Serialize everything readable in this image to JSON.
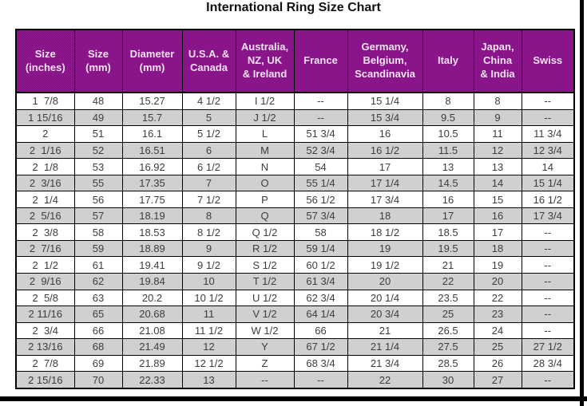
{
  "title": "International Ring Size Chart",
  "colors": {
    "header_bg": "#8a0e8a",
    "header_text": "#f6e4f4",
    "alt_row_bg": "#cdcdcd",
    "grid_border": "#000000",
    "cell_text": "#3d3d3d",
    "frame_bar": "#000000"
  },
  "chart_data": {
    "type": "table",
    "title": "International Ring Size Chart",
    "columns": [
      {
        "id": "size-inches",
        "label": "Size\n(inches)"
      },
      {
        "id": "size-mm",
        "label": "Size\n(mm)"
      },
      {
        "id": "diameter-mm",
        "label": "Diameter\n(mm)"
      },
      {
        "id": "usa-canada",
        "label": "U.S.A. &\nCanada"
      },
      {
        "id": "australia-nz-uk-ireland",
        "label": "Australia,\nNZ, UK\n& Ireland"
      },
      {
        "id": "france",
        "label": "France"
      },
      {
        "id": "germany-belgium-scandinavia",
        "label": "Germany,\nBelgium,\nScandinavia"
      },
      {
        "id": "italy",
        "label": "Italy"
      },
      {
        "id": "japan-china-india",
        "label": "Japan,\nChina\n& India"
      },
      {
        "id": "swiss",
        "label": "Swiss"
      }
    ],
    "rows": [
      [
        "1  7/8",
        "48",
        "15.27",
        "4 1/2",
        "I 1/2",
        "--",
        "15 1/4",
        "8",
        "8",
        "--"
      ],
      [
        "1 15/16",
        "49",
        "15.7",
        "5",
        "J 1/2",
        "--",
        "15 3/4",
        "9.5",
        "9",
        "--"
      ],
      [
        "2",
        "51",
        "16.1",
        "5 1/2",
        "L",
        "51 3/4",
        "16",
        "10.5",
        "11",
        "11 3/4"
      ],
      [
        "2  1/16",
        "52",
        "16.51",
        "6",
        "M",
        "52 3/4",
        "16 1/2",
        "11.5",
        "12",
        "12 3/4"
      ],
      [
        "2  1/8",
        "53",
        "16.92",
        "6 1/2",
        "N",
        "54",
        "17",
        "13",
        "13",
        "14"
      ],
      [
        "2  3/16",
        "55",
        "17.35",
        "7",
        "O",
        "55 1/4",
        "17 1/4",
        "14.5",
        "14",
        "15 1/4"
      ],
      [
        "2  1/4",
        "56",
        "17.75",
        "7 1/2",
        "P",
        "56 1/2",
        "17 3/4",
        "16",
        "15",
        "16 1/2"
      ],
      [
        "2  5/16",
        "57",
        "18.19",
        "8",
        "Q",
        "57 3/4",
        "18",
        "17",
        "16",
        "17 3/4"
      ],
      [
        "2  3/8",
        "58",
        "18.53",
        "8 1/2",
        "Q 1/2",
        "58",
        "18 1/2",
        "18.5",
        "17",
        "--"
      ],
      [
        "2  7/16",
        "59",
        "18.89",
        "9",
        "R 1/2",
        "59 1/4",
        "19",
        "19.5",
        "18",
        "--"
      ],
      [
        "2  1/2",
        "61",
        "19.41",
        "9 1/2",
        "S 1/2",
        "60 1/2",
        "19 1/2",
        "21",
        "19",
        "--"
      ],
      [
        "2  9/16",
        "62",
        "19.84",
        "10",
        "T 1/2",
        "61 3/4",
        "20",
        "22",
        "20",
        "--"
      ],
      [
        "2  5/8",
        "63",
        "20.2",
        "10 1/2",
        "U 1/2",
        "62 3/4",
        "20 1/4",
        "23.5",
        "22",
        "--"
      ],
      [
        "2 11/16",
        "65",
        "20.68",
        "11",
        "V 1/2",
        "64 1/4",
        "20 3/4",
        "25",
        "23",
        "--"
      ],
      [
        "2  3/4",
        "66",
        "21.08",
        "11 1/2",
        "W 1/2",
        "66",
        "21",
        "26.5",
        "24",
        "--"
      ],
      [
        "2 13/16",
        "68",
        "21.49",
        "12",
        "Y",
        "67 1/2",
        "21 1/4",
        "27.5",
        "25",
        "27 1/2"
      ],
      [
        "2  7/8",
        "69",
        "21.89",
        "12 1/2",
        "Z",
        "68 3/4",
        "21 3/4",
        "28.5",
        "26",
        "28 3/4"
      ],
      [
        "2 15/16",
        "70",
        "22.33",
        "13",
        "--",
        "--",
        "22",
        "30",
        "27",
        "--"
      ]
    ]
  }
}
